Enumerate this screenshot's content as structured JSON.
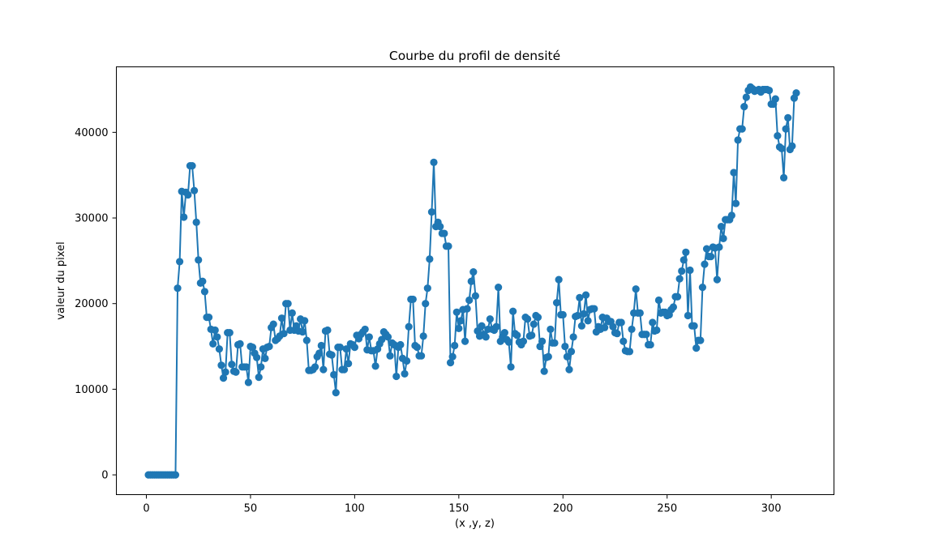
{
  "chart_data": {
    "type": "line",
    "title": "Courbe du profil de densité",
    "xlabel": "(x ,y, z)",
    "ylabel": "valeur du pixel",
    "xlim": [
      -14.4,
      330.1
    ],
    "ylim": [
      -2310,
      47650
    ],
    "xticks": [
      0,
      50,
      100,
      150,
      200,
      250,
      300
    ],
    "yticks": [
      0,
      10000,
      20000,
      30000,
      40000
    ],
    "grid": false,
    "marker": "circle",
    "color": "#1f77b4",
    "series": [
      {
        "y": [
          0,
          0,
          0,
          0,
          0,
          0,
          0,
          0,
          0,
          0,
          0,
          0,
          0,
          0,
          21800,
          24900,
          33100,
          30100,
          33000,
          32700,
          36100,
          36100,
          33200,
          29500,
          25100,
          22400,
          22600,
          21400,
          18400,
          18400,
          17000,
          15300,
          16900,
          16100,
          14700,
          12800,
          11300,
          12000,
          16600,
          16600,
          12900,
          12100,
          12000,
          15200,
          15300,
          12600,
          12600,
          12600,
          10800,
          15000,
          14900,
          14200,
          13700,
          11400,
          12600,
          14700,
          13600,
          14900,
          15000,
          17200,
          17600,
          15700,
          15900,
          16200,
          18300,
          16500,
          20000,
          20000,
          16900,
          18900,
          16900,
          17400,
          16800,
          18200,
          16700,
          18000,
          15700,
          12200,
          12200,
          12300,
          12600,
          13800,
          14200,
          15100,
          12300,
          16800,
          16900,
          14100,
          14000,
          11700,
          9600,
          14900,
          14900,
          12300,
          12300,
          14700,
          13000,
          15300,
          15200,
          14900,
          16300,
          15900,
          16400,
          16700,
          17000,
          14600,
          16100,
          14500,
          14500,
          12700,
          14700,
          15300,
          15800,
          16700,
          16400,
          16100,
          13900,
          15400,
          15200,
          11500,
          14900,
          15200,
          13600,
          11800,
          13300,
          17300,
          20500,
          20500,
          15100,
          14900,
          13900,
          13900,
          16200,
          20000,
          21800,
          25200,
          30700,
          36500,
          29000,
          29500,
          29000,
          28200,
          28200,
          26700,
          26700,
          13100,
          13800,
          15100,
          19000,
          17100,
          18000,
          19300,
          15600,
          19400,
          20400,
          22600,
          23700,
          20900,
          16800,
          16200,
          17400,
          16400,
          16100,
          17000,
          18200,
          17000,
          16900,
          17300,
          21900,
          15600,
          16100,
          16600,
          15800,
          15500,
          12600,
          19100,
          16500,
          16300,
          15500,
          15200,
          15600,
          18400,
          18200,
          16200,
          16300,
          17600,
          18600,
          18400,
          15000,
          15600,
          12100,
          13700,
          13800,
          17000,
          15400,
          15400,
          20100,
          22800,
          18700,
          18700,
          15000,
          13800,
          12300,
          14400,
          16100,
          18500,
          18600,
          20700,
          17400,
          18800,
          21000,
          18000,
          19300,
          19400,
          19400,
          16700,
          17300,
          17000,
          18400,
          17200,
          18300,
          17900,
          17900,
          17300,
          16600,
          16500,
          17800,
          17800,
          15600,
          14500,
          14400,
          14400,
          17000,
          18900,
          21700,
          18900,
          18900,
          16400,
          16400,
          16400,
          15200,
          15200,
          17800,
          16800,
          16900,
          20400,
          18900,
          19000,
          19000,
          18600,
          18700,
          19300,
          19600,
          20800,
          20800,
          22900,
          23800,
          25100,
          26000,
          18600,
          23900,
          17400,
          17400,
          14800,
          15700,
          15700,
          21900,
          24600,
          26400,
          25500,
          25500,
          26600,
          26500,
          22800,
          26600,
          29000,
          27600,
          29800,
          29800,
          29800,
          30300,
          35300,
          31700,
          39100,
          40400,
          40400,
          43000,
          44100,
          44900,
          45300,
          45100,
          44800,
          44900,
          45000,
          44700,
          45000,
          45000,
          45000,
          44900,
          43300,
          43300,
          43900,
          39600,
          38300,
          38100,
          34700,
          40400,
          41700,
          38000,
          38400,
          44000,
          44600
        ]
      }
    ]
  }
}
